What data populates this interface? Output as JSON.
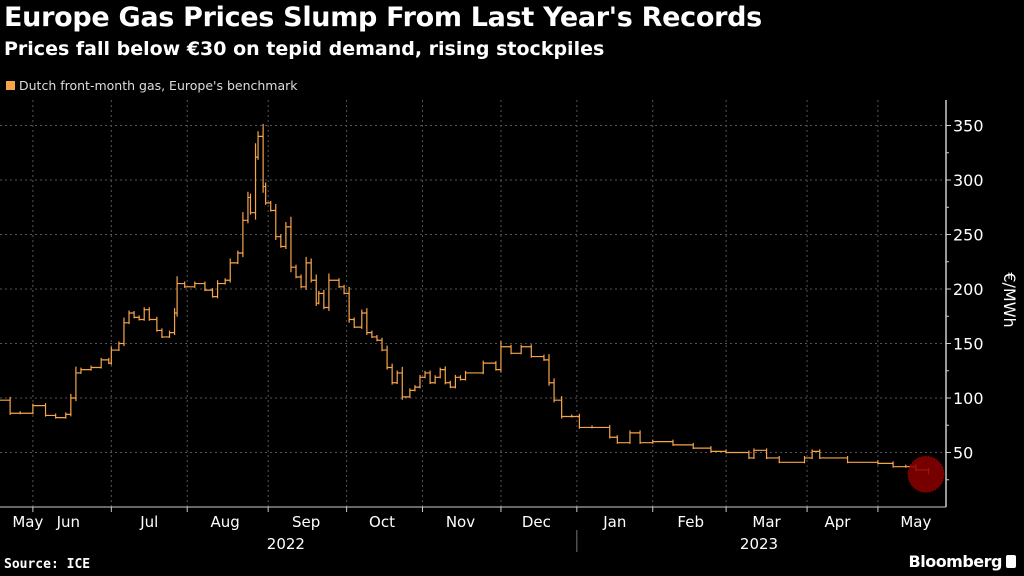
{
  "header": {
    "title": "Europe Gas Prices Slump From Last Year's Records",
    "subtitle": "Prices fall below €30 on tepid demand, rising stockpiles"
  },
  "footer": {
    "source": "Source: ICE",
    "brand": "Bloomberg"
  },
  "chart_data": {
    "type": "line",
    "title": "Europe Gas Prices Slump From Last Year's Records",
    "subtitle": "Prices fall below €30 on tepid demand, rising stockpiles",
    "legend": [
      {
        "label": "Dutch front-month gas, Europe's benchmark",
        "color": "#f6a54a"
      }
    ],
    "legend_placement": "top-left",
    "ylabel": "€/MWh",
    "xlabel": "",
    "ylim": [
      0,
      365
    ],
    "yticks": [
      50,
      100,
      150,
      200,
      250,
      300,
      350
    ],
    "x_unit": "days since 2022-05-10",
    "xlim": [
      0,
      373
    ],
    "month_labels": [
      {
        "label": "May",
        "day": 11
      },
      {
        "label": "Jun",
        "day": 27
      },
      {
        "label": "Jul",
        "day": 59
      },
      {
        "label": "Aug",
        "day": 89
      },
      {
        "label": "Sep",
        "day": 121
      },
      {
        "label": "Oct",
        "day": 151
      },
      {
        "label": "Nov",
        "day": 182
      },
      {
        "label": "Dec",
        "day": 212
      },
      {
        "label": "Jan",
        "day": 243
      },
      {
        "label": "Feb",
        "day": 273
      },
      {
        "label": "Mar",
        "day": 303
      },
      {
        "label": "Apr",
        "day": 331
      },
      {
        "label": "May",
        "day": 362
      }
    ],
    "month_gridlines": [
      13,
      44,
      74,
      106,
      137,
      167,
      198,
      228,
      258,
      287,
      319,
      347
    ],
    "years": [
      {
        "label": "2022",
        "day": 113
      },
      {
        "label": "2023",
        "day": 300
      }
    ],
    "year_separator_day": 228,
    "grid": true,
    "highlight": {
      "day": 366,
      "value": 30,
      "color": "#8b0000"
    },
    "series": [
      {
        "name": "Dutch front-month gas, Europe's benchmark",
        "color": "#f6a54a",
        "x": [
          0,
          4,
          8,
          13,
          18,
          22,
          26,
          28,
          30,
          32,
          36,
          40,
          43,
          44,
          47,
          49,
          51,
          53,
          55,
          57,
          59,
          62,
          64,
          67,
          69,
          70,
          73,
          77,
          81,
          84,
          86,
          89,
          91,
          94,
          96,
          98,
          99,
          101,
          102,
          104,
          105,
          107,
          109,
          111,
          113,
          115,
          117,
          119,
          121,
          123,
          125,
          126,
          128,
          130,
          134,
          136,
          138,
          140,
          143,
          145,
          147,
          149,
          151,
          153,
          155,
          157,
          159,
          162,
          164,
          166,
          168,
          170,
          172,
          174,
          176,
          178,
          180,
          182,
          184,
          191,
          196,
          198,
          202,
          206,
          210,
          215,
          217,
          219,
          222,
          226,
          229,
          234,
          241,
          244,
          249,
          253,
          258,
          266,
          274,
          281,
          287,
          296,
          298,
          303,
          308,
          318,
          321,
          324,
          335,
          347,
          353,
          358,
          362,
          367
        ],
        "values": [
          98,
          86,
          86,
          93,
          84,
          82,
          85,
          100,
          123,
          126,
          128,
          135,
          132,
          144,
          150,
          169,
          178,
          174,
          172,
          181,
          172,
          162,
          156,
          160,
          178,
          205,
          202,
          205,
          199,
          193,
          205,
          208,
          224,
          233,
          263,
          284,
          270,
          321,
          340,
          294,
          279,
          272,
          248,
          239,
          257,
          220,
          211,
          202,
          224,
          208,
          187,
          196,
          183,
          208,
          202,
          196,
          172,
          165,
          178,
          160,
          156,
          153,
          144,
          128,
          114,
          123,
          101,
          107,
          110,
          119,
          123,
          114,
          119,
          126,
          114,
          110,
          119,
          117,
          123,
          132,
          126,
          147,
          141,
          147,
          138,
          135,
          114,
          98,
          83,
          83,
          73,
          73,
          64,
          59,
          68,
          59,
          60,
          57,
          54,
          51,
          50,
          45,
          52,
          45,
          41,
          45,
          51,
          45,
          41,
          40,
          37,
          37,
          34,
          31
        ]
      }
    ]
  }
}
